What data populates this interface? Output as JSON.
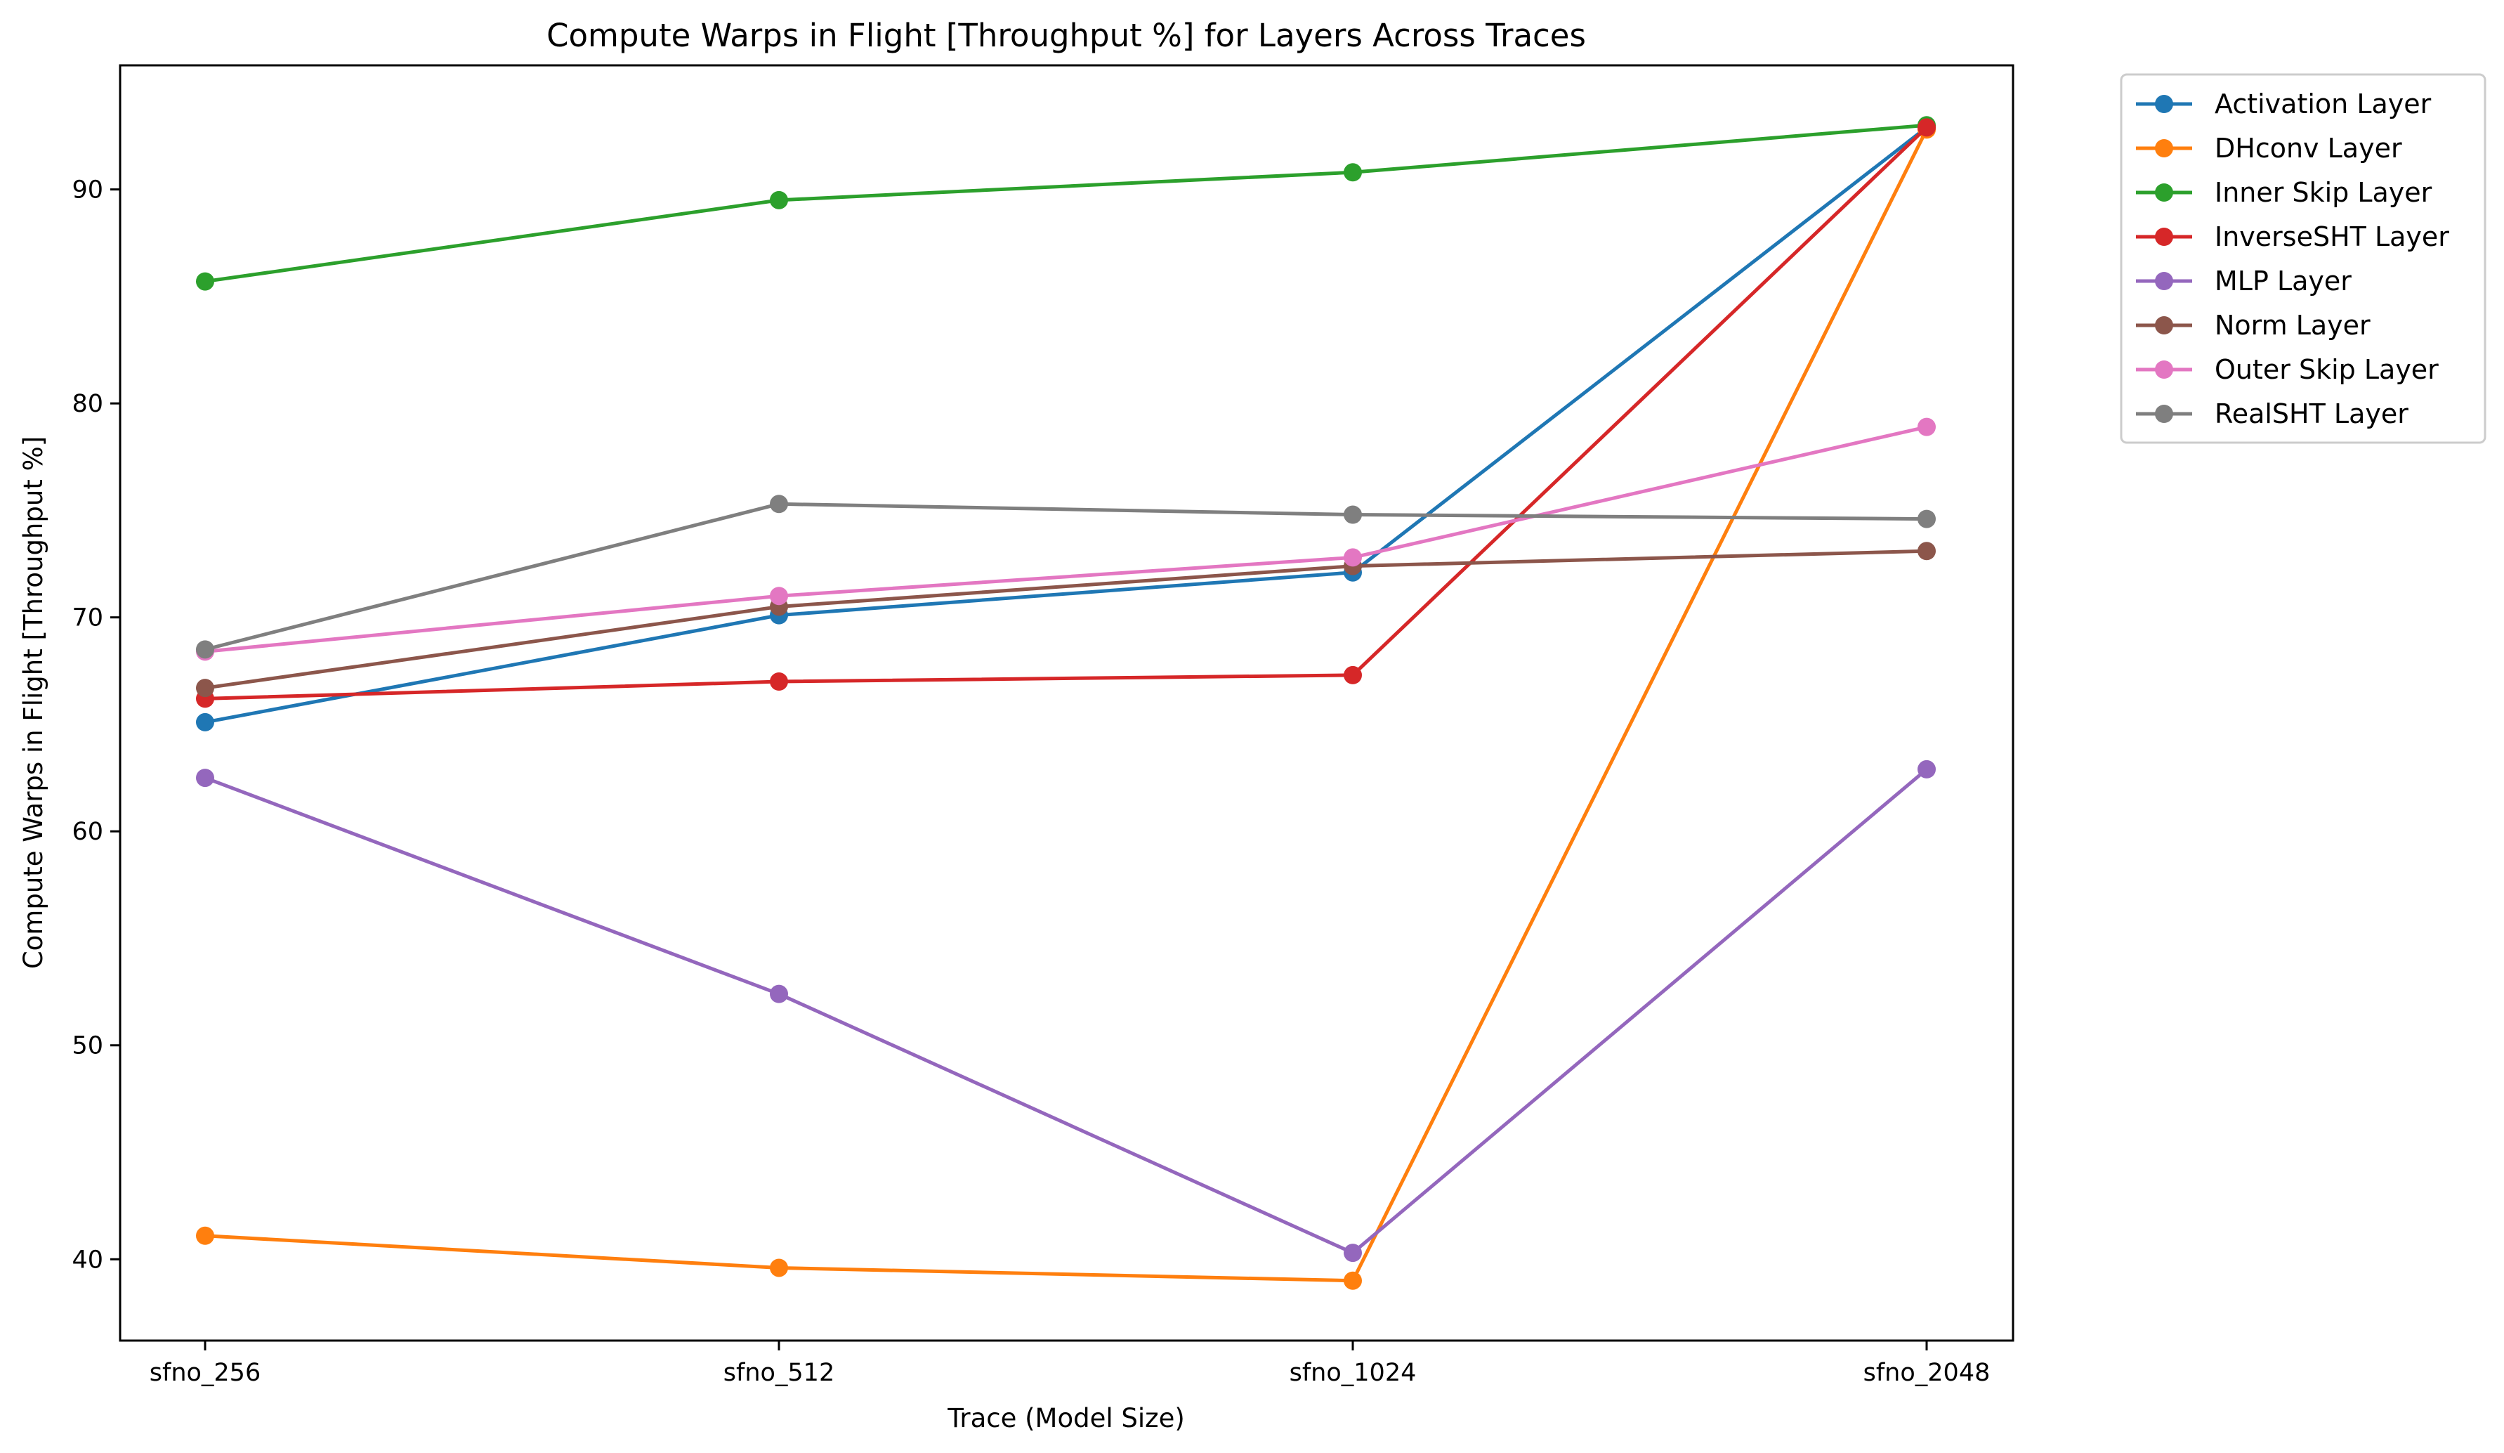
{
  "chart_data": {
    "type": "line",
    "title": "Compute Warps in Flight [Throughput %] for Layers Across Traces",
    "xlabel": "Trace (Model Size)",
    "ylabel": "Compute Warps in Flight [Throughput %]",
    "categories": [
      "sfno_256",
      "sfno_512",
      "sfno_1024",
      "sfno_2048"
    ],
    "ylim": [
      36.2,
      95.8
    ],
    "yticks": [
      40,
      50,
      60,
      70,
      80,
      90
    ],
    "grid": false,
    "legend_position": "outside-top-right",
    "marker": "circle",
    "series": [
      {
        "name": "Activation Layer",
        "color": "#1f77b4",
        "values": [
          65.1,
          70.1,
          72.1,
          92.9
        ]
      },
      {
        "name": "DHconv Layer",
        "color": "#ff7f0e",
        "values": [
          41.1,
          39.6,
          39.0,
          92.8
        ]
      },
      {
        "name": "Inner Skip Layer",
        "color": "#2ca02c",
        "values": [
          85.7,
          89.5,
          90.8,
          93.0
        ]
      },
      {
        "name": "InverseSHT Layer",
        "color": "#d62728",
        "values": [
          66.2,
          67.0,
          67.3,
          92.9
        ]
      },
      {
        "name": "MLP Layer",
        "color": "#9467bd",
        "values": [
          62.5,
          52.4,
          40.3,
          62.9
        ]
      },
      {
        "name": "Norm Layer",
        "color": "#8c564b",
        "values": [
          66.7,
          70.5,
          72.4,
          73.1
        ]
      },
      {
        "name": "Outer Skip Layer",
        "color": "#e377c2",
        "values": [
          68.4,
          71.0,
          72.8,
          78.9
        ]
      },
      {
        "name": "RealSHT Layer",
        "color": "#7f7f7f",
        "values": [
          68.5,
          75.3,
          74.8,
          74.6
        ]
      }
    ]
  }
}
